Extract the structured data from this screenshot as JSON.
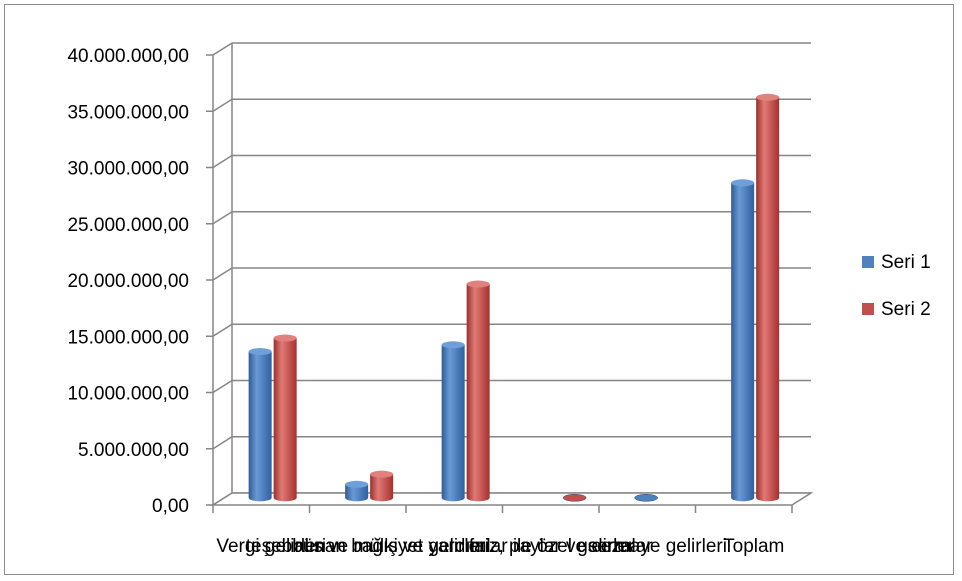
{
  "chart_data": {
    "type": "bar",
    "categories": [
      "Vergi gelirleri",
      "teşebbüs ve mülkiyet gelirleri",
      "alınan bağış ve yardımlar ile özel gelirler",
      "faiz, paylar ve cezalar",
      "sermaye gelirleri",
      "Toplam"
    ],
    "category_labels": [
      "Vergi gelirleri",
      "teşebbüs ve mülkiyet gelirleri",
      "alınan bağış ve yardımlar ile özel gelirler",
      "faiz, paylar ve cezalar",
      "sermaye gelirleri",
      "Toplam"
    ],
    "series": [
      {
        "name": "Seri 1",
        "color": "#4f81bd",
        "values": [
          13000000,
          1200000,
          13600000,
          0,
          100000,
          28000000
        ]
      },
      {
        "name": "Seri 2",
        "color": "#c0504d",
        "values": [
          14200000,
          2100000,
          19000000,
          150000,
          0,
          35600000
        ]
      }
    ],
    "yticks": [
      "0,00",
      "5.000.000,00",
      "10.000.000,00",
      "15.000.000,00",
      "20.000.000,00",
      "25.000.000,00",
      "30.000.000,00",
      "35.000.000,00",
      "40.000.000,00"
    ],
    "ylim": [
      0,
      40000000
    ],
    "grid": true,
    "legend": "right",
    "title": "",
    "xlabel": "",
    "ylabel": ""
  }
}
